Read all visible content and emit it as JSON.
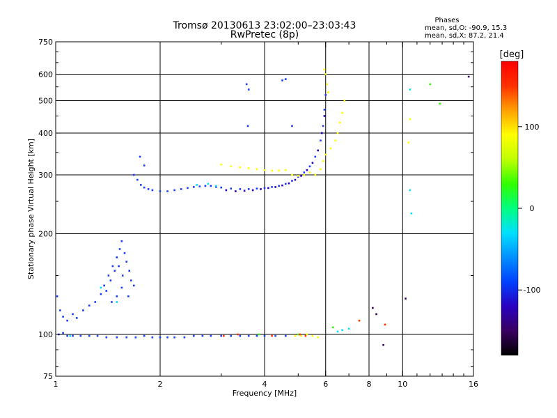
{
  "chart_data": {
    "type": "scatter",
    "title": "Tromsø 20130613 23:02:00–23:03:43",
    "subtitle": "RwPretec (8p)",
    "xlabel": "Frequency [MHz]",
    "ylabel": "Stationary phase Virtual Height [km]",
    "xscale": "log",
    "yscale": "log",
    "xlim": [
      1,
      16
    ],
    "ylim": [
      75,
      750
    ],
    "x_ticks": [
      1,
      2,
      4,
      6,
      8,
      10,
      16
    ],
    "x_tick_labels": [
      "1",
      "2",
      "4",
      "6",
      "8",
      "10",
      "16"
    ],
    "x_gridlines": [
      2,
      4,
      6,
      8,
      10
    ],
    "y_ticks": [
      75,
      100,
      200,
      300,
      400,
      500,
      600,
      750
    ],
    "y_tick_labels": [
      "75",
      "100",
      "200",
      "300",
      "400",
      "500",
      "600",
      "750"
    ],
    "y_gridlines": [
      100,
      200,
      300,
      400,
      500,
      600
    ],
    "grid": true,
    "phases_box": {
      "title": "Phases",
      "line1": "mean, sd,O: -90.9, 15.3",
      "line2": "mean, sd,X: 87.2, 21.4"
    },
    "colorbar": {
      "label": "[deg]",
      "range": [
        -180,
        180
      ],
      "ticks": [
        -100,
        0,
        100
      ],
      "tick_labels": [
        "-100",
        "0",
        "100"
      ],
      "colors": [
        "#000000",
        "#3a0060",
        "#2a00c0",
        "#0040ff",
        "#0090ff",
        "#00e0ff",
        "#00ff80",
        "#30ff00",
        "#c0ff00",
        "#ffff00",
        "#ffa000",
        "#ff3000",
        "#ff0000"
      ]
    },
    "series": [
      {
        "phase": -100,
        "color": "#1a3cff",
        "points": [
          [
            1.02,
            100
          ],
          [
            1.05,
            101
          ],
          [
            1.08,
            99
          ],
          [
            1.12,
            99
          ],
          [
            1.18,
            99
          ],
          [
            1.25,
            99
          ],
          [
            1.32,
            99
          ],
          [
            1.4,
            98
          ],
          [
            1.5,
            98
          ],
          [
            1.6,
            98
          ],
          [
            1.7,
            98
          ],
          [
            1.8,
            99
          ],
          [
            1.9,
            98
          ],
          [
            2.0,
            98
          ],
          [
            2.1,
            98
          ],
          [
            2.2,
            98
          ],
          [
            2.35,
            98
          ],
          [
            2.5,
            99
          ],
          [
            2.65,
            99
          ],
          [
            2.8,
            99
          ],
          [
            3.0,
            99
          ],
          [
            3.2,
            99
          ],
          [
            3.4,
            99
          ],
          [
            3.6,
            99
          ],
          [
            3.8,
            99
          ],
          [
            4.0,
            99
          ],
          [
            4.3,
            99
          ],
          [
            4.6,
            99
          ],
          [
            1.01,
            130
          ],
          [
            1.03,
            118
          ],
          [
            1.05,
            113
          ],
          [
            1.08,
            110
          ],
          [
            1.12,
            115
          ],
          [
            1.15,
            112
          ],
          [
            1.2,
            118
          ],
          [
            1.25,
            122
          ],
          [
            1.3,
            125
          ],
          [
            1.35,
            132
          ],
          [
            1.38,
            140
          ],
          [
            1.42,
            150
          ],
          [
            1.46,
            160
          ],
          [
            1.5,
            170
          ],
          [
            1.53,
            180
          ],
          [
            1.55,
            190
          ],
          [
            1.58,
            175
          ],
          [
            1.6,
            165
          ],
          [
            1.63,
            155
          ],
          [
            1.65,
            145
          ],
          [
            1.68,
            140
          ],
          [
            1.4,
            135
          ],
          [
            1.44,
            145
          ],
          [
            1.48,
            155
          ],
          [
            1.52,
            160
          ],
          [
            1.56,
            150
          ],
          [
            1.62,
            130
          ],
          [
            1.45,
            125
          ],
          [
            1.5,
            130
          ],
          [
            1.55,
            138
          ],
          [
            1.68,
            300
          ],
          [
            1.72,
            290
          ],
          [
            1.76,
            280
          ],
          [
            1.8,
            275
          ],
          [
            1.85,
            272
          ],
          [
            1.9,
            270
          ],
          [
            2.0,
            268
          ],
          [
            2.1,
            268
          ],
          [
            2.2,
            270
          ],
          [
            2.3,
            272
          ],
          [
            2.4,
            274
          ],
          [
            2.5,
            276
          ],
          [
            2.6,
            277
          ],
          [
            2.7,
            278
          ],
          [
            2.8,
            278
          ],
          [
            2.9,
            276
          ],
          [
            3.0,
            275
          ],
          [
            3.2,
            273
          ],
          [
            3.4,
            272
          ],
          [
            3.6,
            272
          ],
          [
            3.8,
            273
          ],
          [
            4.0,
            274
          ],
          [
            4.2,
            276
          ],
          [
            4.4,
            278
          ],
          [
            4.6,
            282
          ],
          [
            4.8,
            288
          ],
          [
            5.0,
            296
          ],
          [
            5.2,
            305
          ],
          [
            5.4,
            318
          ],
          [
            5.6,
            340
          ],
          [
            5.8,
            380
          ],
          [
            5.9,
            420
          ],
          [
            5.95,
            470
          ],
          [
            6.0,
            520
          ],
          [
            1.75,
            340
          ],
          [
            1.8,
            320
          ],
          [
            3.55,
            560
          ],
          [
            3.6,
            540
          ],
          [
            3.58,
            420
          ],
          [
            4.5,
            575
          ],
          [
            4.6,
            580
          ],
          [
            4.8,
            420
          ]
        ]
      },
      {
        "phase": -125,
        "color": "#2a00c0",
        "points": [
          [
            3.1,
            270
          ],
          [
            3.3,
            268
          ],
          [
            3.5,
            269
          ],
          [
            3.7,
            270
          ],
          [
            3.9,
            272
          ],
          [
            4.1,
            274
          ],
          [
            4.3,
            276
          ],
          [
            4.5,
            279
          ],
          [
            4.7,
            283
          ],
          [
            4.9,
            290
          ],
          [
            5.1,
            298
          ],
          [
            5.3,
            310
          ],
          [
            5.5,
            326
          ],
          [
            5.7,
            355
          ],
          [
            5.85,
            400
          ],
          [
            5.95,
            450
          ]
        ]
      },
      {
        "phase": 100,
        "color": "#ffff00",
        "points": [
          [
            3.0,
            322
          ],
          [
            3.2,
            318
          ],
          [
            3.4,
            316
          ],
          [
            3.6,
            314
          ],
          [
            3.8,
            312
          ],
          [
            4.0,
            310
          ],
          [
            4.2,
            309
          ],
          [
            4.4,
            309
          ],
          [
            4.6,
            310
          ],
          [
            4.8,
            300
          ],
          [
            5.0,
            298
          ],
          [
            5.2,
            300
          ],
          [
            5.4,
            305
          ],
          [
            5.6,
            300
          ],
          [
            5.8,
            312
          ],
          [
            5.9,
            330
          ],
          [
            6.0,
            345
          ],
          [
            6.2,
            360
          ],
          [
            6.4,
            380
          ],
          [
            6.5,
            400
          ],
          [
            6.6,
            430
          ],
          [
            6.7,
            460
          ],
          [
            6.8,
            500
          ],
          [
            5.95,
            620
          ],
          [
            6.0,
            600
          ],
          [
            6.05,
            560
          ],
          [
            6.1,
            530
          ],
          [
            4.9,
            99
          ],
          [
            5.1,
            99
          ],
          [
            5.3,
            100
          ],
          [
            5.5,
            99
          ],
          [
            5.7,
            98
          ],
          [
            10.5,
            440
          ],
          [
            10.4,
            375
          ]
        ]
      },
      {
        "phase": 0,
        "color": "#00e0ff",
        "points": [
          [
            1.1,
            99
          ],
          [
            2.55,
            280
          ],
          [
            2.75,
            282
          ],
          [
            2.9,
            278
          ],
          [
            6.5,
            102
          ],
          [
            6.7,
            103
          ],
          [
            7.0,
            104
          ],
          [
            10.5,
            270
          ],
          [
            10.6,
            230
          ],
          [
            10.5,
            540
          ],
          [
            1.5,
            125
          ],
          [
            1.35,
            138
          ]
        ]
      },
      {
        "phase": 60,
        "color": "#30ff00",
        "points": [
          [
            12.0,
            560
          ],
          [
            12.8,
            490
          ],
          [
            3.85,
            100
          ],
          [
            5.0,
            100
          ],
          [
            6.3,
            105
          ]
        ]
      },
      {
        "phase": 150,
        "color": "#ff3000",
        "points": [
          [
            3.05,
            99
          ],
          [
            3.35,
            100
          ],
          [
            4.2,
            99
          ],
          [
            5.05,
            100
          ],
          [
            5.25,
            99
          ],
          [
            7.5,
            110
          ],
          [
            8.9,
            107
          ]
        ]
      },
      {
        "phase": -160,
        "color": "#3a0060",
        "points": [
          [
            8.2,
            120
          ],
          [
            8.4,
            115
          ],
          [
            8.8,
            93
          ],
          [
            10.2,
            128
          ],
          [
            15.5,
            590
          ]
        ]
      }
    ]
  }
}
